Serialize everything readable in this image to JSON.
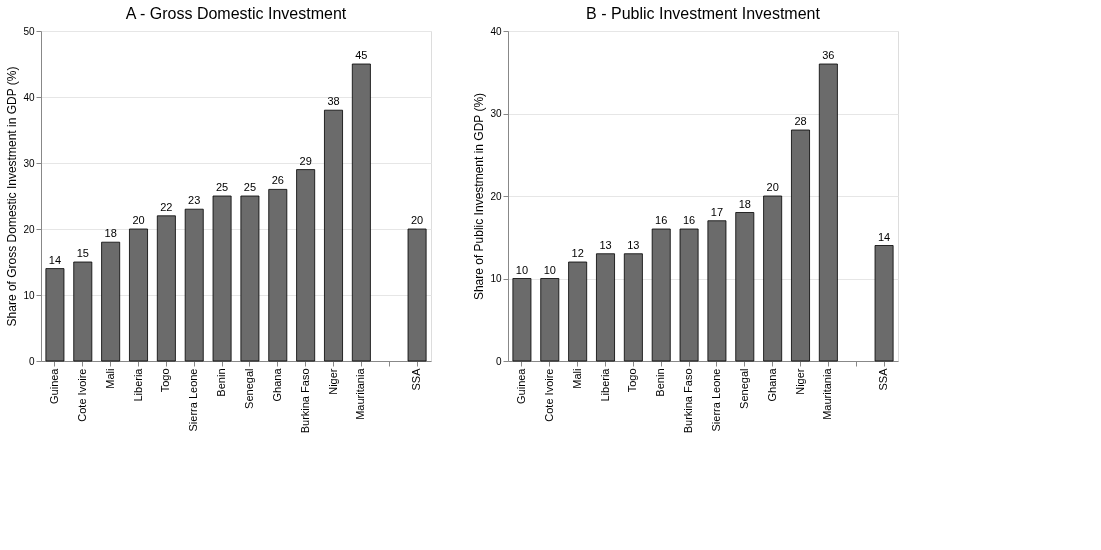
{
  "chart_data": [
    {
      "type": "bar",
      "title": "A - Gross Domestic Investment",
      "ylabel": "Share of Gross Domestic Investment in GDP (%)",
      "categories": [
        "Guinea",
        "Cote Ivoire",
        "Mali",
        "Liberia",
        "Togo",
        "Sierra Leone",
        "Benin",
        "Senegal",
        "Ghana",
        "Burkina Faso",
        "Niger",
        "Mauritania",
        null,
        "SSA"
      ],
      "values": [
        14,
        15,
        18,
        20,
        22,
        23,
        25,
        25,
        26,
        29,
        38,
        45,
        null,
        20
      ],
      "color": "#6b6b6b",
      "ylim": [
        0,
        50
      ],
      "yticks": [
        0,
        10,
        20,
        30,
        40,
        50
      ],
      "grid": "y",
      "data_labels": true
    },
    {
      "type": "bar",
      "title": "B - Public Investment Investment",
      "ylabel": "Share of Public Investment in GDP (%)",
      "categories": [
        "Guinea",
        "Cote Ivoire",
        "Mali",
        "Liberia",
        "Togo",
        "Benin",
        "Burkina Faso",
        "Sierra Leone",
        "Senegal",
        "Ghana",
        "Niger",
        "Mauritania",
        null,
        "SSA"
      ],
      "values": [
        10,
        10,
        12,
        13,
        13,
        16,
        16,
        17,
        18,
        20,
        28,
        36,
        null,
        14
      ],
      "color": "#6b6b6b",
      "ylim": [
        0,
        40
      ],
      "yticks": [
        0,
        10,
        20,
        30,
        40
      ],
      "grid": "y",
      "data_labels": true
    }
  ]
}
